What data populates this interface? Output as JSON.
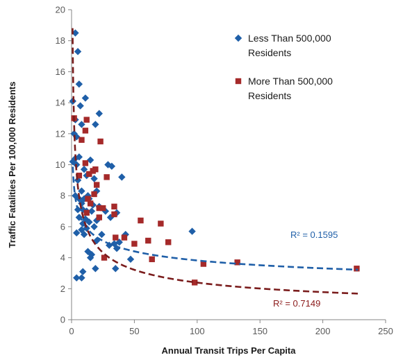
{
  "chart_data": {
    "type": "scatter",
    "xlabel": "Annual Transit Trips Per Capita",
    "ylabel": "Traffic Fatalities Per 100,000 Residents",
    "xlim": [
      0,
      250
    ],
    "ylim": [
      0,
      20
    ],
    "xticks": [
      0,
      50,
      100,
      150,
      200,
      250
    ],
    "yticks": [
      0,
      2,
      4,
      6,
      8,
      10,
      12,
      14,
      16,
      18,
      20
    ],
    "grid": false,
    "legend_position": "top-right",
    "series": [
      {
        "name_line1": "Less Than 500,000",
        "name_line2": "Residents",
        "marker": "diamond",
        "color": "#1f5fa8",
        "trendline": {
          "type": "power",
          "a": 9.87,
          "b": -0.206,
          "x_range": [
            1,
            228
          ],
          "label": "R² = 0.1595",
          "label_color": "#1f5fa8"
        },
        "points": [
          [
            3,
            18.5
          ],
          [
            5,
            17.3
          ],
          [
            6,
            15.2
          ],
          [
            11,
            14.3
          ],
          [
            1,
            14.1
          ],
          [
            7,
            13.8
          ],
          [
            22,
            13.3
          ],
          [
            3,
            12.9
          ],
          [
            8,
            12.6
          ],
          [
            19,
            12.6
          ],
          [
            2,
            12.0
          ],
          [
            4,
            11.8
          ],
          [
            1,
            10.2
          ],
          [
            3,
            10.4
          ],
          [
            6,
            10.5
          ],
          [
            4,
            10.0
          ],
          [
            15,
            10.3
          ],
          [
            29,
            10.0
          ],
          [
            32,
            9.9
          ],
          [
            10,
            9.7
          ],
          [
            18,
            9.1
          ],
          [
            40,
            9.2
          ],
          [
            12,
            9.3
          ],
          [
            5,
            9.0
          ],
          [
            8,
            8.3
          ],
          [
            3,
            8.0
          ],
          [
            13,
            8.0
          ],
          [
            20,
            8.3
          ],
          [
            6,
            7.8
          ],
          [
            10,
            7.8
          ],
          [
            14,
            7.8
          ],
          [
            8,
            7.5
          ],
          [
            17,
            7.4
          ],
          [
            22,
            7.3
          ],
          [
            5,
            7.1
          ],
          [
            9,
            7.1
          ],
          [
            12,
            7.0
          ],
          [
            16,
            7.0
          ],
          [
            27,
            7.0
          ],
          [
            6,
            6.6
          ],
          [
            11,
            6.5
          ],
          [
            20,
            6.4
          ],
          [
            31,
            6.6
          ],
          [
            36,
            6.9
          ],
          [
            9,
            6.2
          ],
          [
            14,
            6.3
          ],
          [
            18,
            6.0
          ],
          [
            8,
            5.8
          ],
          [
            12,
            5.9
          ],
          [
            4,
            5.6
          ],
          [
            24,
            5.5
          ],
          [
            43,
            5.5
          ],
          [
            96,
            5.7
          ],
          [
            10,
            5.5
          ],
          [
            20,
            5.1
          ],
          [
            38,
            5.0
          ],
          [
            30,
            4.8
          ],
          [
            34,
            4.9
          ],
          [
            13,
            4.4
          ],
          [
            16,
            4.2
          ],
          [
            36,
            4.6
          ],
          [
            47,
            3.9
          ],
          [
            15,
            4.0
          ],
          [
            19,
            3.3
          ],
          [
            35,
            3.3
          ],
          [
            9,
            3.1
          ],
          [
            4,
            2.7
          ],
          [
            8,
            2.7
          ]
        ]
      },
      {
        "name_line1": "More Than 500,000",
        "name_line2": "Residents",
        "marker": "square",
        "color": "#a52a2a",
        "trendline": {
          "type": "power",
          "a": 17.1,
          "b": -0.427,
          "x_range": [
            0.8,
            228
          ],
          "label": "R² = 0.7149",
          "label_color": "#8b1a1a"
        },
        "points": [
          [
            2,
            13.0
          ],
          [
            12,
            12.9
          ],
          [
            11,
            12.2
          ],
          [
            8,
            11.6
          ],
          [
            23,
            11.5
          ],
          [
            11,
            10.1
          ],
          [
            17,
            9.6
          ],
          [
            19,
            9.7
          ],
          [
            14,
            9.4
          ],
          [
            6,
            9.3
          ],
          [
            28,
            9.2
          ],
          [
            18,
            8.1
          ],
          [
            20,
            8.7
          ],
          [
            13,
            7.8
          ],
          [
            15,
            7.5
          ],
          [
            25,
            7.2
          ],
          [
            22,
            7.2
          ],
          [
            34,
            7.3
          ],
          [
            12,
            6.9
          ],
          [
            34,
            6.8
          ],
          [
            22,
            6.6
          ],
          [
            55,
            6.4
          ],
          [
            71,
            6.2
          ],
          [
            35,
            5.3
          ],
          [
            42,
            5.3
          ],
          [
            61,
            5.1
          ],
          [
            77,
            5.0
          ],
          [
            50,
            4.9
          ],
          [
            26,
            4.0
          ],
          [
            64,
            3.9
          ],
          [
            105,
            3.6
          ],
          [
            132,
            3.7
          ],
          [
            98,
            2.4
          ],
          [
            227,
            3.3
          ]
        ]
      }
    ]
  }
}
